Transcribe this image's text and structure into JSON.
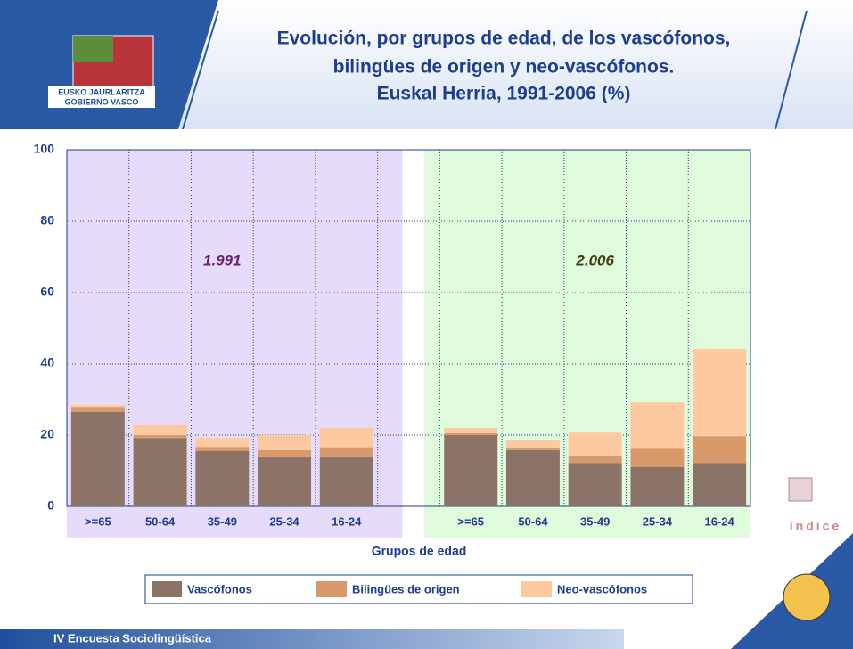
{
  "header": {
    "logo_lines": [
      "EUSKO JAURLARITZA",
      "GOBIERNO VASCO"
    ]
  },
  "footer": "IV Encuesta Sociolingüística",
  "index_button": "índice",
  "chart_data": {
    "type": "stacked-bar",
    "title": [
      "Evolución, por grupos de edad, de los vascófonos,",
      "bilingües de origen y neo-vascófonos.",
      "Euskal Herria, 1991-2006 (%)"
    ],
    "x_label": "Grupos de edad",
    "annotations": [
      "1.991",
      "2.006"
    ],
    "categories": [
      ">=65",
      "50-64",
      "35-49",
      "25-34",
      "16-24",
      null,
      ">=65",
      "50-64",
      "35-49",
      "25-34",
      "16-24"
    ],
    "series": [
      {
        "name": "Vascófonos",
        "color": "#8c7367",
        "values": [
          26.5,
          19.2,
          15.5,
          13.8,
          13.8,
          null,
          20,
          15.8,
          12.2,
          11,
          12.2
        ]
      },
      {
        "name": "Bilingües de origen",
        "color": "#d89a6b",
        "values": [
          1.2,
          0.8,
          1.2,
          2,
          2.8,
          null,
          0.5,
          0.5,
          2,
          5.2,
          7.5
        ]
      },
      {
        "name": "Neo-vascófonos",
        "color": "#fdc9a0",
        "values": [
          0.8,
          2.8,
          2.5,
          4.2,
          5.5,
          null,
          1.5,
          2.2,
          6.5,
          13,
          24.5
        ]
      }
    ],
    "ylim": [
      0,
      100
    ],
    "yticks": [
      0,
      20,
      40,
      60,
      80,
      100
    ],
    "grid": true
  }
}
